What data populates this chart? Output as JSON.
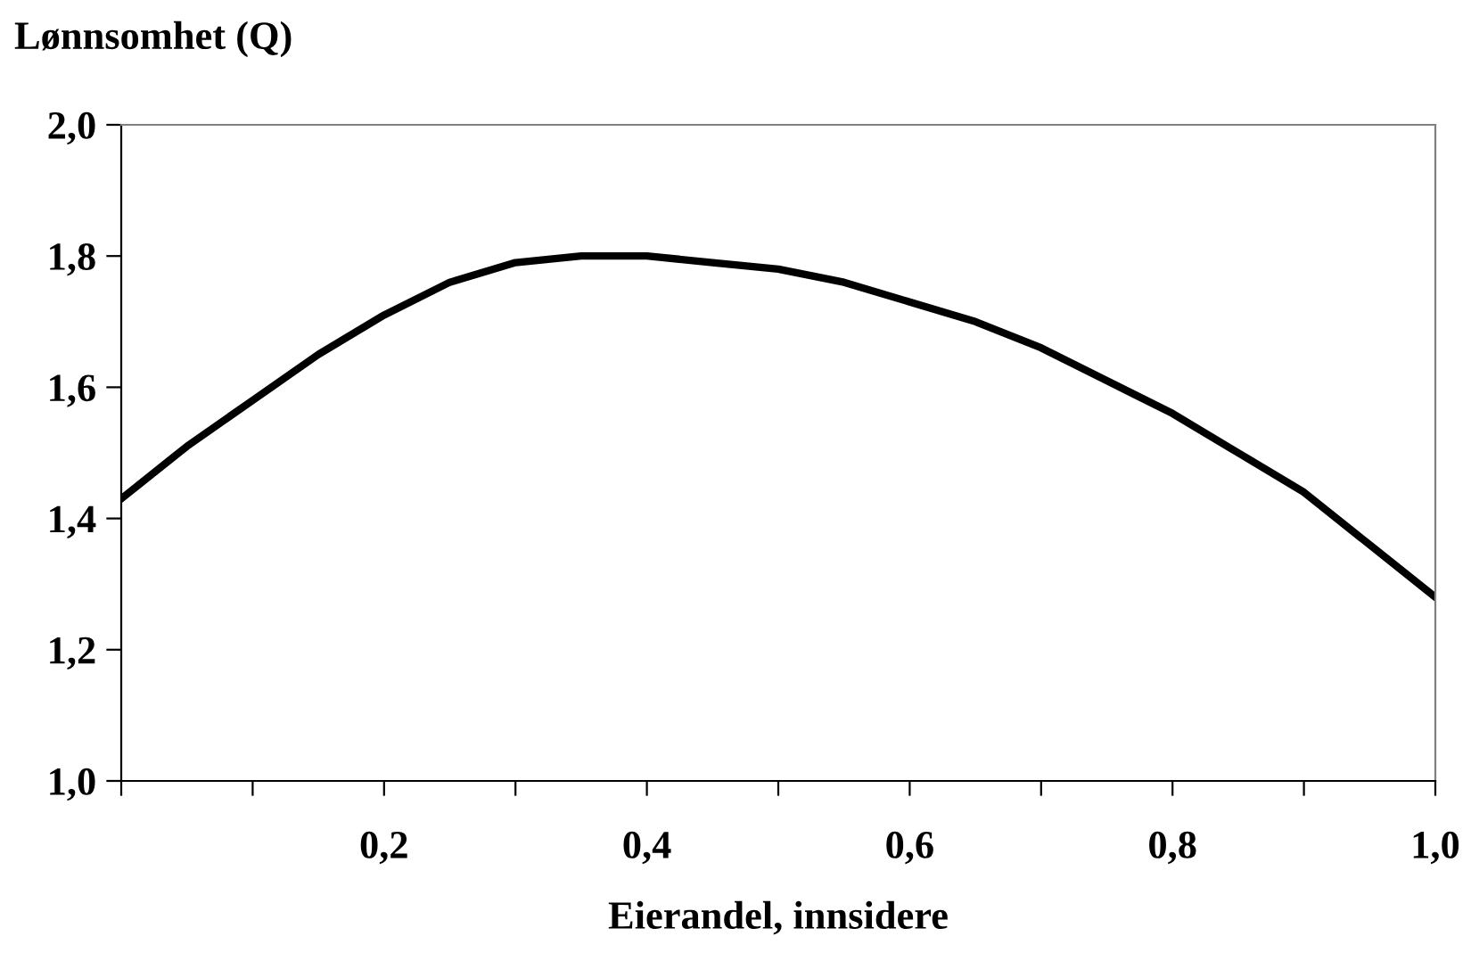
{
  "chart_data": {
    "type": "line",
    "xlabel": "Eierandel, innsidere",
    "ylabel": "Lønnsomhet (Q)",
    "x": [
      0,
      0.05,
      0.1,
      0.15,
      0.2,
      0.25,
      0.3,
      0.35,
      0.4,
      0.45,
      0.5,
      0.55,
      0.6,
      0.65,
      0.7,
      0.75,
      0.8,
      0.85,
      0.9,
      0.95,
      1.0
    ],
    "series": [
      {
        "color": "#000000",
        "values": [
          1.43,
          1.51,
          1.58,
          1.65,
          1.71,
          1.76,
          1.79,
          1.8,
          1.8,
          1.79,
          1.78,
          1.76,
          1.73,
          1.7,
          1.66,
          1.61,
          1.56,
          1.5,
          1.44,
          1.36,
          1.28
        ]
      }
    ],
    "xlim": [
      0,
      1.0
    ],
    "ylim": [
      1.0,
      2.0
    ],
    "xticks": [
      {
        "value": 0,
        "label": null
      },
      {
        "value": 0.1,
        "label": null
      },
      {
        "value": 0.2,
        "label": "0,2"
      },
      {
        "value": 0.3,
        "label": null
      },
      {
        "value": 0.4,
        "label": "0,4"
      },
      {
        "value": 0.5,
        "label": null
      },
      {
        "value": 0.6,
        "label": "0,6"
      },
      {
        "value": 0.7,
        "label": null
      },
      {
        "value": 0.8,
        "label": "0,8"
      },
      {
        "value": 0.9,
        "label": null
      },
      {
        "value": 1.0,
        "label": "1,0"
      }
    ],
    "yticks": [
      {
        "value": 1.0,
        "label": "1,0"
      },
      {
        "value": 1.2,
        "label": "1,2"
      },
      {
        "value": 1.4,
        "label": "1,4"
      },
      {
        "value": 1.6,
        "label": "1,6"
      },
      {
        "value": 1.8,
        "label": "1,8"
      },
      {
        "value": 2.0,
        "label": "2,0"
      }
    ],
    "grid": false,
    "marker": "none",
    "line_style": "solid"
  }
}
